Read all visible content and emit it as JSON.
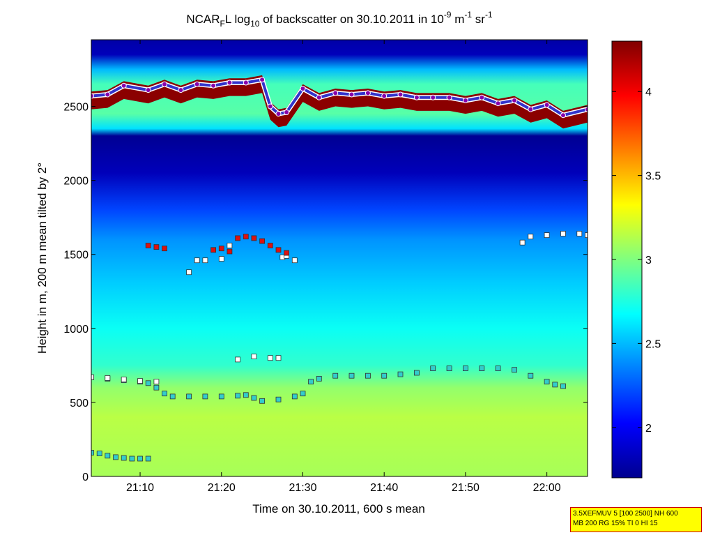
{
  "title": {
    "prefix": "NCAR",
    "sub1": "F",
    "mid1": "L log",
    "sub2": "10",
    "mid2": " of backscatter on 30.10.2011 in 10",
    "sup1": "-9",
    "mid3": " m",
    "sup2": "-1",
    "mid4": " sr",
    "sup3": "-1"
  },
  "info_box": {
    "line1": "3.5XEFMUV 5 [100 2500] NH 600",
    "line2": "MB 200 RG 15% TI 0 HI 15"
  },
  "colors": {
    "cloud_layer": "#8b0000",
    "marker_red": "#dd1111",
    "marker_white": "#ffffff",
    "marker_cyan": "#33cccc",
    "marker_blue": "#3333cc",
    "marker_purple": "#8800aa"
  },
  "chart_data": {
    "type": "heatmap",
    "xlabel": "Time on 30.10.2011, 600 s mean",
    "ylabel": "Height in m, 200 m mean tilted by 2°",
    "x_ticks": [
      {
        "value": 70,
        "label": "21:10"
      },
      {
        "value": 80,
        "label": "21:20"
      },
      {
        "value": 90,
        "label": "21:30"
      },
      {
        "value": 100,
        "label": "21:40"
      },
      {
        "value": 110,
        "label": "21:50"
      },
      {
        "value": 120,
        "label": "22:00"
      }
    ],
    "xlim": [
      64,
      125
    ],
    "x_unit": "minutes after 20:00",
    "y_ticks": [
      {
        "value": 0,
        "label": "0"
      },
      {
        "value": 500,
        "label": "500"
      },
      {
        "value": 1000,
        "label": "1000"
      },
      {
        "value": 1500,
        "label": "1500"
      },
      {
        "value": 2000,
        "label": "2000"
      },
      {
        "value": 2500,
        "label": "2500"
      }
    ],
    "ylim": [
      0,
      2950
    ],
    "colorbar": {
      "range": [
        1.7,
        4.3
      ],
      "ticks": [
        {
          "value": 2,
          "label": "2"
        },
        {
          "value": 2.5,
          "label": "2.5"
        },
        {
          "value": 3,
          "label": "3"
        },
        {
          "value": 3.5,
          "label": "3.5"
        },
        {
          "value": 4,
          "label": "4"
        }
      ],
      "colormap": "jet"
    },
    "background_profile": [
      {
        "h": 0,
        "v": 3.1
      },
      {
        "h": 400,
        "v": 3.15
      },
      {
        "h": 600,
        "v": 3.05
      },
      {
        "h": 750,
        "v": 2.8
      },
      {
        "h": 1000,
        "v": 2.7
      },
      {
        "h": 1300,
        "v": 2.55
      },
      {
        "h": 1600,
        "v": 2.4
      },
      {
        "h": 1800,
        "v": 2.2
      },
      {
        "h": 2050,
        "v": 1.85
      },
      {
        "h": 2300,
        "v": 1.75
      },
      {
        "h": 2350,
        "v": 2.6
      },
      {
        "h": 2450,
        "v": 2.9
      },
      {
        "h": 2650,
        "v": 2.85
      },
      {
        "h": 2750,
        "v": 2.5
      },
      {
        "h": 2850,
        "v": 1.85
      },
      {
        "h": 2950,
        "v": 1.8
      }
    ],
    "cloud_top_line": {
      "x": [
        64,
        66,
        68,
        71,
        73,
        75,
        77,
        79,
        81,
        83,
        85,
        86,
        87,
        88,
        90,
        92,
        94,
        96,
        98,
        100,
        102,
        104,
        106,
        108,
        110,
        112,
        114,
        116,
        118,
        120,
        122,
        125
      ],
      "y": [
        2570,
        2580,
        2640,
        2610,
        2650,
        2610,
        2650,
        2640,
        2660,
        2660,
        2680,
        2500,
        2450,
        2460,
        2620,
        2560,
        2590,
        2580,
        2590,
        2570,
        2580,
        2560,
        2560,
        2560,
        2540,
        2560,
        2520,
        2540,
        2480,
        2510,
        2440,
        2480
      ]
    },
    "pbl_cyan_markers": {
      "x": [
        64,
        66,
        68,
        70,
        71,
        72,
        73,
        74,
        76,
        78,
        80,
        82,
        83,
        84,
        85,
        87,
        89,
        90,
        91,
        92,
        94,
        96,
        98,
        100,
        102,
        104,
        106,
        108,
        110,
        112,
        114,
        116,
        118,
        120,
        121,
        122
      ],
      "y": [
        670,
        660,
        650,
        640,
        630,
        600,
        560,
        540,
        540,
        540,
        540,
        545,
        550,
        530,
        510,
        520,
        540,
        560,
        640,
        660,
        680,
        680,
        680,
        680,
        690,
        700,
        730,
        730,
        730,
        730,
        730,
        720,
        680,
        640,
        620,
        610
      ]
    },
    "white_markers": {
      "x": [
        64,
        66,
        68,
        70,
        72,
        76,
        77,
        78,
        80,
        81,
        82,
        84,
        86,
        87,
        87.5,
        88,
        89,
        117,
        118,
        120,
        122,
        124,
        125
      ],
      "y": [
        670,
        665,
        655,
        645,
        640,
        1380,
        1460,
        1460,
        1470,
        1560,
        790,
        810,
        800,
        800,
        1480,
        1490,
        1460,
        1580,
        1620,
        1630,
        1640,
        1640,
        1630
      ]
    },
    "red_markers": {
      "x": [
        71,
        72,
        73,
        79,
        80,
        81,
        82,
        83,
        84,
        85,
        86,
        87,
        88
      ],
      "y": [
        1560,
        1550,
        1540,
        1530,
        1540,
        1520,
        1610,
        1620,
        1610,
        1590,
        1560,
        1530,
        1510
      ]
    },
    "low_cyan_markers": {
      "x": [
        64,
        65,
        66,
        67,
        68,
        69,
        70,
        71
      ],
      "y": [
        160,
        155,
        140,
        130,
        125,
        120,
        120,
        120
      ]
    }
  }
}
